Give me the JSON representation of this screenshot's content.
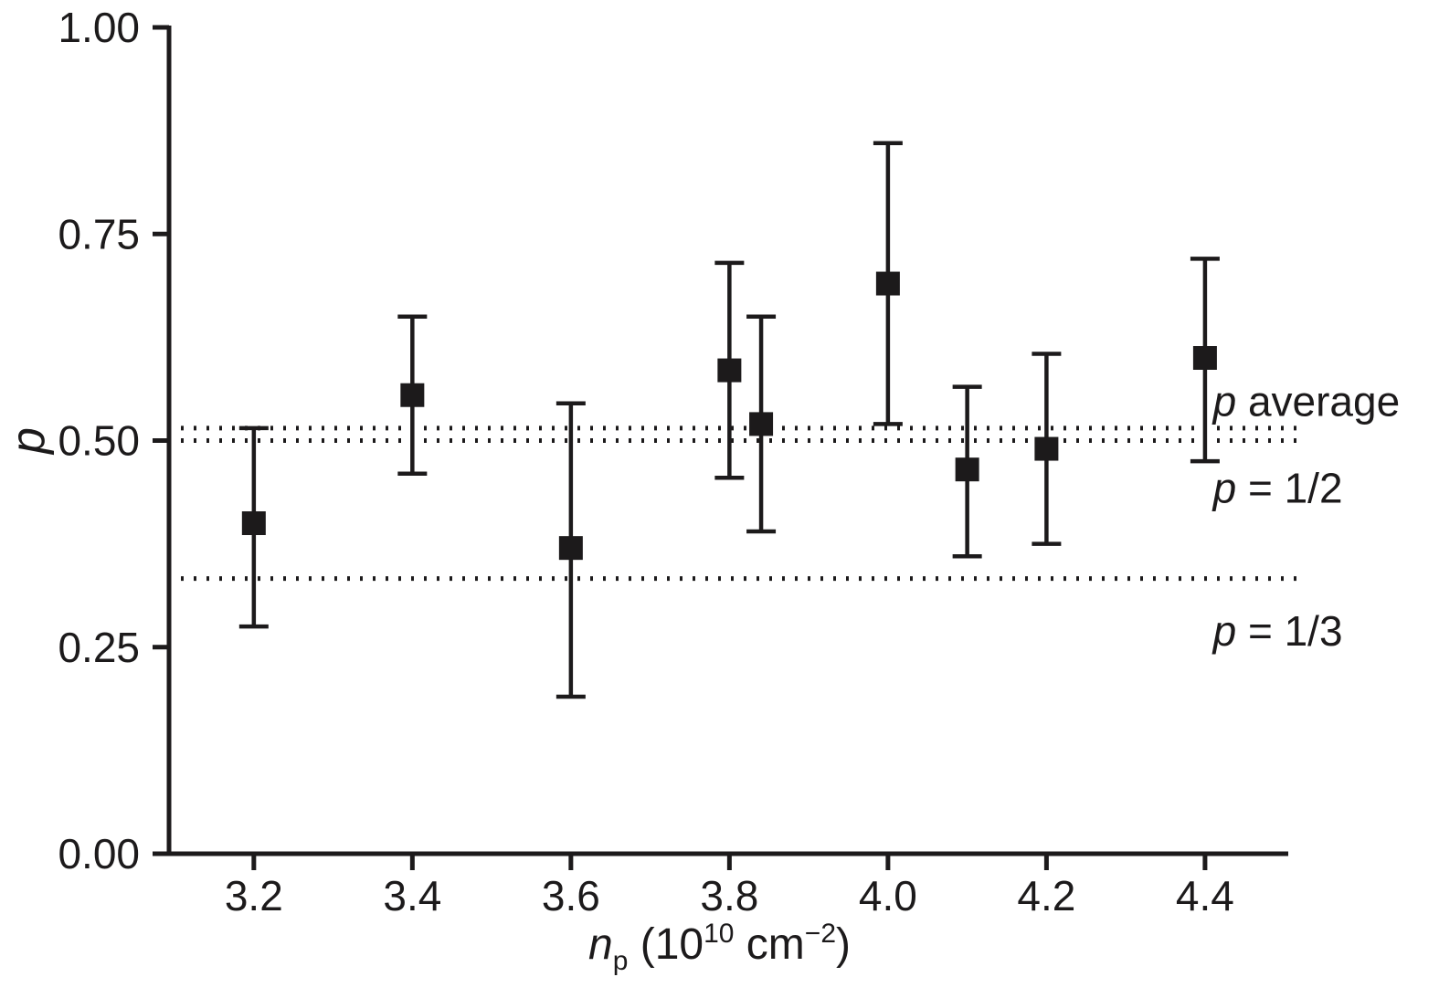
{
  "page": {
    "background": "#ffffff"
  },
  "chart_data": {
    "type": "scatter",
    "title": "",
    "ylabel": "p",
    "xlabel": "n_p (10^10 cm^-2)",
    "xlabel_parts": [
      {
        "text": "n",
        "italic": true
      },
      {
        "text": "p",
        "shift": "sub"
      },
      {
        "text": " (10"
      },
      {
        "text": "10",
        "shift": "sup"
      },
      {
        "text": " cm"
      },
      {
        "text": "−2",
        "shift": "sup"
      },
      {
        "text": ")"
      }
    ],
    "xlim": [
      3.093,
      4.505
    ],
    "ylim": [
      0,
      1
    ],
    "grid": false,
    "legend": null,
    "axis_color": "#1c1a1b",
    "xticks": [
      {
        "value": 3.2,
        "label": "3.2"
      },
      {
        "value": 3.4,
        "label": "3.4"
      },
      {
        "value": 3.6,
        "label": "3.6"
      },
      {
        "value": 3.8,
        "label": "3.8"
      },
      {
        "value": 4.0,
        "label": "4.0"
      },
      {
        "value": 4.2,
        "label": "4.2"
      },
      {
        "value": 4.4,
        "label": "4.4"
      }
    ],
    "yticks": [
      {
        "value": 0.0,
        "label": "0.00"
      },
      {
        "value": 0.25,
        "label": "0.25"
      },
      {
        "value": 0.5,
        "label": "0.50"
      },
      {
        "value": 0.75,
        "label": "0.75"
      },
      {
        "value": 1.0,
        "label": "1.00"
      }
    ],
    "reference_lines": [
      {
        "y": 0.515,
        "label_italic": "p",
        "label_text": " average",
        "label_x": 4.41,
        "label_y": 0.53
      },
      {
        "y": 0.5,
        "label_italic": "p",
        "label_text": " = 1/2",
        "label_x": 4.41,
        "label_y": 0.425
      },
      {
        "y": 0.333,
        "label_italic": "p",
        "label_text": " = 1/3",
        "label_x": 4.41,
        "label_y": 0.252
      }
    ],
    "points": [
      {
        "x": 3.2,
        "y": 0.4,
        "lo": 0.275,
        "hi": 0.515
      },
      {
        "x": 3.4,
        "y": 0.555,
        "lo": 0.46,
        "hi": 0.65
      },
      {
        "x": 3.6,
        "y": 0.37,
        "lo": 0.19,
        "hi": 0.545
      },
      {
        "x": 3.8,
        "y": 0.585,
        "lo": 0.455,
        "hi": 0.715
      },
      {
        "x": 3.84,
        "y": 0.52,
        "lo": 0.39,
        "hi": 0.65
      },
      {
        "x": 4.0,
        "y": 0.69,
        "lo": 0.52,
        "hi": 0.86
      },
      {
        "x": 4.1,
        "y": 0.465,
        "lo": 0.36,
        "hi": 0.565
      },
      {
        "x": 4.2,
        "y": 0.49,
        "lo": 0.375,
        "hi": 0.605
      },
      {
        "x": 4.4,
        "y": 0.6,
        "lo": 0.475,
        "hi": 0.72
      }
    ]
  }
}
